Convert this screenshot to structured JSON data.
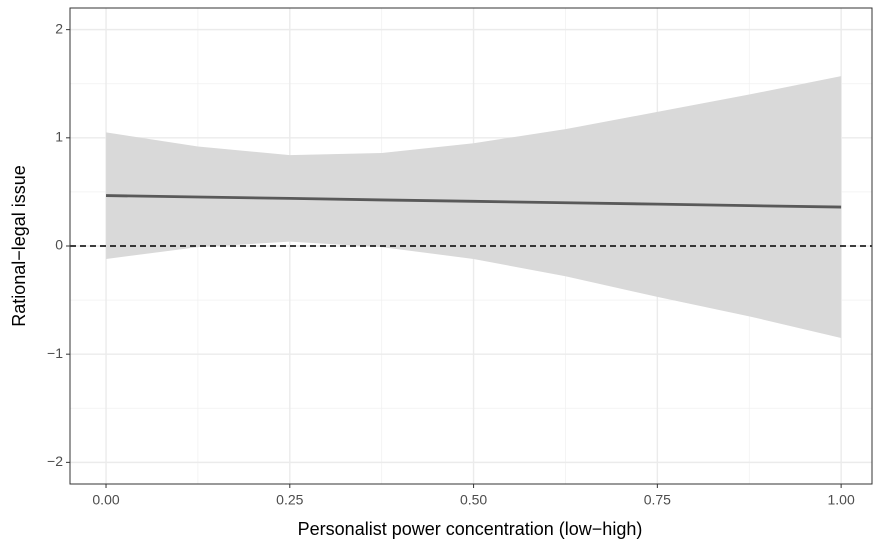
{
  "chart_data": {
    "type": "line",
    "x_label": "Personalist power concentration (low−high)",
    "y_label": "Rational−legal issue",
    "x": [
      0,
      0.125,
      0.25,
      0.375,
      0.5,
      0.625,
      0.75,
      0.875,
      1
    ],
    "series": [
      {
        "color": "#595959",
        "values": [
          0.466,
          0.453,
          0.44,
          0.426,
          0.413,
          0.4,
          0.387,
          0.373,
          0.36
        ],
        "upper": [
          1.05,
          0.92,
          0.84,
          0.86,
          0.95,
          1.08,
          1.24,
          1.4,
          1.57
        ],
        "lower": [
          -0.12,
          -0.01,
          0.04,
          -0.01,
          -0.12,
          -0.28,
          -0.47,
          -0.65,
          -0.85
        ],
        "band_color": "#d9d9d9"
      }
    ],
    "hline": 0,
    "xlim": [
      -0.049,
      1.042
    ],
    "ylim": [
      -2.2,
      2.2
    ],
    "xticks": [
      {
        "value": 0,
        "label": "0.00"
      },
      {
        "value": 0.25,
        "label": "0.25"
      },
      {
        "value": 0.5,
        "label": "0.50"
      },
      {
        "value": 0.75,
        "label": "0.75"
      },
      {
        "value": 1,
        "label": "1.00"
      }
    ],
    "yticks": [
      {
        "value": -2,
        "label": "−2"
      },
      {
        "value": -1,
        "label": "−1"
      },
      0,
      1,
      2
    ],
    "grid": true
  }
}
